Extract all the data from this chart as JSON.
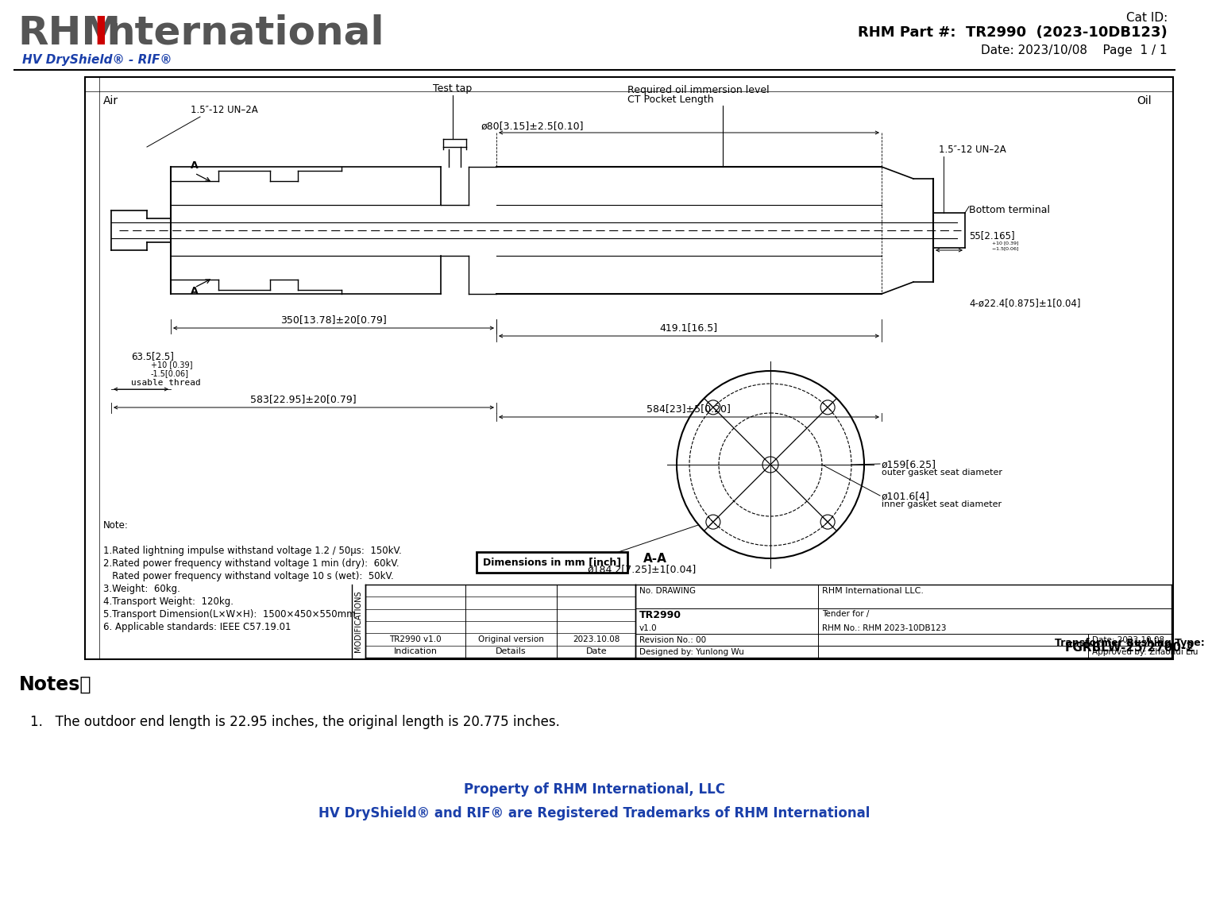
{
  "subtitle": "HV DryShield® - RIF®",
  "cat_id": "Cat ID:",
  "part_number": "RHM Part #:  TR2990  (2023-10DB123)",
  "date_page": "Date: 2023/10/08    Page  1 / 1",
  "notes_title": "Notes：",
  "note_1": "1.   The outdoor end length is 22.95 inches, the original length is 20.775 inches.",
  "property_line": "Property of RHM International, LLC",
  "trademark_line": "HV DryShield® and RIF® are Registered Trademarks of RHM International",
  "drawing_notes": [
    "Note:",
    "",
    "1.Rated lightning impulse withstand voltage 1.2 / 50μs:  150kV.",
    "2.Rated power frequency withstand voltage 1 min (dry):  60kV.",
    "   Rated power frequency withstand voltage 10 s (wet):  50kV.",
    "3.Weight:  60kg.",
    "4.Transport Weight:  120kg.",
    "5.Transport Dimension(L×W×H):  1500×450×550mm.",
    "6. Applicable standards: IEEE C57.19.01"
  ],
  "dim_label": "Dimensions in mm [inch]",
  "view_label": "A-A",
  "table_data": {
    "no_drawing": "No. DRAWING",
    "drawing_num": "TR2990",
    "version": "v1.0",
    "company": "RHM International LLC.",
    "tender": "Tender for /",
    "rhm_no": "RHM No.: RHM 2023-10DB123",
    "revision": "Revision No.: 00",
    "date_cell": "Date: 2023.10.08",
    "designed": "Designed by: Yunlong Wu",
    "approved": "Approved by: Zhaohui Liu",
    "bushing_type_label": "Transformer Bushing Type:",
    "bushing_type": "FGRBLW-25/2700-2",
    "mod_row1_ind": "TR2990 v1.0",
    "mod_row1_det": "Original version",
    "mod_row1_date": "2023.10.08",
    "mod_header_ind": "Indication",
    "mod_header_det": "Details",
    "mod_header_date": "Date"
  }
}
